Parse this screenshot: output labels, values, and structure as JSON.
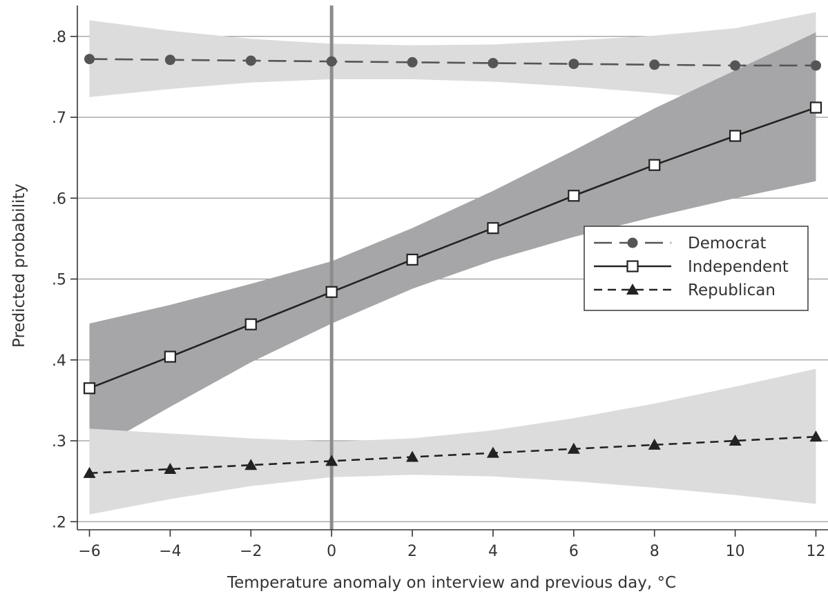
{
  "chart_data": {
    "type": "line",
    "xlabel": "Temperature anomaly on interview and previous day, °C",
    "ylabel": "Predicted probability",
    "xlim": [
      -6.3,
      12.3
    ],
    "ylim": [
      0.19,
      0.845
    ],
    "x_ticks": [
      -6,
      -4,
      -2,
      0,
      2,
      4,
      6,
      8,
      10,
      12
    ],
    "x_tick_labels": [
      "−6",
      "−4",
      "−2",
      "0",
      "2",
      "4",
      "6",
      "8",
      "10",
      "12"
    ],
    "y_ticks": [
      0.2,
      0.3,
      0.4,
      0.5,
      0.6,
      0.7,
      0.8
    ],
    "y_tick_labels": [
      ".2",
      ".3",
      ".4",
      ".5",
      ".6",
      ".7",
      ".8"
    ],
    "reference_line_x": 0,
    "grid": "horizontal",
    "legend_position": "right",
    "x": [
      -6,
      -4,
      -2,
      0,
      2,
      4,
      6,
      8,
      10,
      12
    ],
    "series": [
      {
        "name": "Democrat",
        "values": [
          0.772,
          0.771,
          0.77,
          0.769,
          0.768,
          0.767,
          0.766,
          0.765,
          0.764,
          0.764
        ],
        "ci_lower": [
          0.725,
          0.735,
          0.743,
          0.747,
          0.747,
          0.744,
          0.738,
          0.73,
          0.72,
          0.708
        ],
        "ci_upper": [
          0.82,
          0.807,
          0.797,
          0.791,
          0.789,
          0.79,
          0.795,
          0.801,
          0.81,
          0.83
        ],
        "marker": "circle",
        "line_style": "long-dash",
        "color": "#555555",
        "band_color": "#dcdcdc"
      },
      {
        "name": "Independent",
        "values": [
          0.365,
          0.404,
          0.444,
          0.484,
          0.524,
          0.563,
          0.603,
          0.641,
          0.677,
          0.712
        ],
        "ci_lower": [
          0.285,
          0.342,
          0.397,
          0.445,
          0.488,
          0.523,
          0.552,
          0.577,
          0.6,
          0.621
        ],
        "ci_upper": [
          0.445,
          0.468,
          0.494,
          0.522,
          0.563,
          0.609,
          0.659,
          0.711,
          0.758,
          0.805
        ],
        "marker": "square",
        "line_style": "solid",
        "color": "#222222",
        "band_color": "#a6a6a8"
      },
      {
        "name": "Republican",
        "values": [
          0.26,
          0.265,
          0.27,
          0.275,
          0.28,
          0.285,
          0.29,
          0.295,
          0.3,
          0.305
        ],
        "ci_lower": [
          0.209,
          0.228,
          0.244,
          0.255,
          0.258,
          0.256,
          0.25,
          0.242,
          0.233,
          0.222
        ],
        "ci_upper": [
          0.315,
          0.309,
          0.303,
          0.299,
          0.303,
          0.313,
          0.328,
          0.346,
          0.367,
          0.389
        ],
        "marker": "triangle",
        "line_style": "short-dash",
        "color": "#222222",
        "band_color": "#dcdcdc"
      }
    ]
  }
}
